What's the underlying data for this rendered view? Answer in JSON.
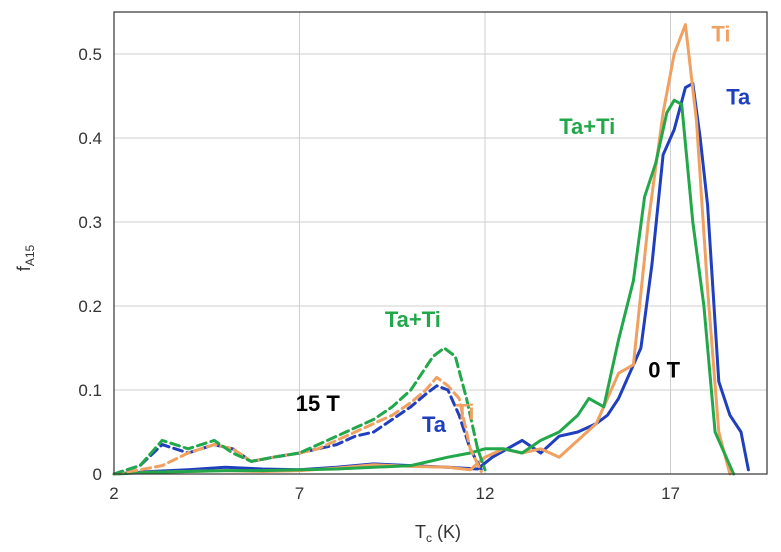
{
  "chart_data": {
    "type": "line",
    "title": "",
    "xlabel_main": "T",
    "xlabel_sub": "c",
    "xlabel_unit": " (K)",
    "ylabel_main": "f",
    "ylabel_sub": "A15",
    "xlim": [
      2,
      19.6
    ],
    "ylim": [
      0,
      0.55
    ],
    "xticks": [
      2,
      7,
      12,
      17
    ],
    "yticks": [
      0,
      0.1,
      0.2,
      0.3,
      0.4,
      0.5
    ],
    "grid": true,
    "legend": "none",
    "colors": {
      "Ta": "#1f3fbf",
      "Ti": "#f0a060",
      "Ta+Ti": "#22a84a",
      "grid": "#cfcfcf",
      "axis": "#333333"
    },
    "annotations": [
      {
        "text": "Ti",
        "x": 18.1,
        "y": 0.515,
        "color": "#f0a060"
      },
      {
        "text": "Ta",
        "x": 18.5,
        "y": 0.44,
        "color": "#1f3fbf"
      },
      {
        "text": "Ta+Ti",
        "x": 14.0,
        "y": 0.405,
        "color": "#22a84a"
      },
      {
        "text": "0 T",
        "x": 16.4,
        "y": 0.115,
        "color": "#000000"
      },
      {
        "text": "15 T",
        "x": 6.9,
        "y": 0.075,
        "color": "#000000"
      },
      {
        "text": "Ta+Ti",
        "x": 9.3,
        "y": 0.175,
        "color": "#22a84a"
      },
      {
        "text": "Ta",
        "x": 10.3,
        "y": 0.05,
        "color": "#1f3fbf"
      },
      {
        "text": "Ti",
        "x": 11.2,
        "y": 0.065,
        "color": "#f0a060"
      }
    ],
    "series": [
      {
        "name": "Ta",
        "field": "0 T",
        "dash": false,
        "color": "#1f3fbf",
        "x": [
          2,
          3,
          4,
          5,
          6,
          7,
          8,
          9,
          10,
          11,
          11.8,
          12.2,
          12.6,
          13,
          13.5,
          14,
          14.5,
          15,
          15.3,
          15.6,
          15.9,
          16.2,
          16.5,
          16.8,
          17.1,
          17.4,
          17.6,
          17.8,
          18,
          18.3,
          18.6,
          18.9,
          19.1
        ],
        "y": [
          0,
          0.003,
          0.005,
          0.008,
          0.006,
          0.005,
          0.008,
          0.012,
          0.01,
          0.008,
          0.006,
          0.02,
          0.03,
          0.04,
          0.025,
          0.045,
          0.05,
          0.06,
          0.07,
          0.09,
          0.12,
          0.15,
          0.25,
          0.38,
          0.41,
          0.46,
          0.465,
          0.4,
          0.32,
          0.11,
          0.07,
          0.05,
          0.005
        ]
      },
      {
        "name": "Ti",
        "field": "0 T",
        "dash": false,
        "color": "#f0a060",
        "x": [
          2,
          3,
          4,
          5,
          6,
          7,
          8,
          9,
          10,
          11,
          11.6,
          12,
          12.5,
          13,
          13.5,
          14,
          14.5,
          15,
          15.3,
          15.6,
          16,
          16.4,
          16.8,
          17.1,
          17.4,
          17.7,
          18,
          18.3,
          18.6
        ],
        "y": [
          0,
          0.002,
          0.003,
          0.004,
          0.003,
          0.004,
          0.007,
          0.011,
          0.009,
          0.008,
          0.005,
          0.02,
          0.03,
          0.025,
          0.03,
          0.02,
          0.04,
          0.06,
          0.09,
          0.12,
          0.13,
          0.3,
          0.43,
          0.5,
          0.535,
          0.42,
          0.22,
          0.05,
          0.0
        ]
      },
      {
        "name": "Ta+Ti",
        "field": "0 T",
        "dash": false,
        "color": "#22a84a",
        "x": [
          2,
          3,
          4,
          5,
          6,
          7,
          8,
          9,
          10,
          11,
          11.6,
          12,
          12.5,
          13,
          13.5,
          14,
          14.5,
          14.8,
          15.2,
          15.6,
          16,
          16.3,
          16.6,
          16.9,
          17.1,
          17.3,
          17.6,
          17.9,
          18.2,
          18.5,
          18.7
        ],
        "y": [
          0,
          0.002,
          0.003,
          0.004,
          0.004,
          0.005,
          0.006,
          0.008,
          0.01,
          0.02,
          0.025,
          0.03,
          0.03,
          0.025,
          0.04,
          0.05,
          0.07,
          0.09,
          0.08,
          0.16,
          0.23,
          0.33,
          0.37,
          0.43,
          0.445,
          0.44,
          0.3,
          0.2,
          0.05,
          0.02,
          0.0
        ]
      },
      {
        "name": "Ta",
        "field": "15 T",
        "dash": true,
        "color": "#1f3fbf",
        "x": [
          2,
          2.7,
          3.3,
          4,
          4.7,
          5.2,
          5.7,
          6.3,
          7,
          7.5,
          8,
          8.5,
          9,
          9.5,
          10,
          10.4,
          10.7,
          11,
          11.3,
          11.6,
          11.9
        ],
        "y": [
          0,
          0.01,
          0.035,
          0.025,
          0.035,
          0.03,
          0.015,
          0.02,
          0.025,
          0.03,
          0.035,
          0.045,
          0.05,
          0.065,
          0.08,
          0.095,
          0.105,
          0.1,
          0.07,
          0.03,
          0.005
        ]
      },
      {
        "name": "Ti",
        "field": "15 T",
        "dash": true,
        "color": "#f0a060",
        "x": [
          2,
          2.7,
          3.3,
          4,
          4.7,
          5.2,
          5.7,
          6.3,
          7,
          7.5,
          8,
          8.5,
          9,
          9.5,
          10,
          10.4,
          10.7,
          11,
          11.3,
          11.6,
          11.9
        ],
        "y": [
          0,
          0.005,
          0.01,
          0.025,
          0.035,
          0.03,
          0.015,
          0.02,
          0.025,
          0.03,
          0.04,
          0.05,
          0.06,
          0.07,
          0.085,
          0.1,
          0.115,
          0.105,
          0.09,
          0.03,
          0.003
        ]
      },
      {
        "name": "Ta+Ti",
        "field": "15 T",
        "dash": true,
        "color": "#22a84a",
        "x": [
          2,
          2.7,
          3.3,
          4,
          4.7,
          5.2,
          5.7,
          6.3,
          7,
          7.5,
          8,
          8.5,
          9,
          9.5,
          10,
          10.3,
          10.6,
          10.9,
          11.2,
          11.5,
          11.8,
          12
        ],
        "y": [
          0,
          0.01,
          0.04,
          0.03,
          0.04,
          0.025,
          0.015,
          0.02,
          0.025,
          0.035,
          0.045,
          0.055,
          0.065,
          0.08,
          0.1,
          0.12,
          0.14,
          0.15,
          0.14,
          0.09,
          0.03,
          0.005
        ]
      }
    ]
  }
}
